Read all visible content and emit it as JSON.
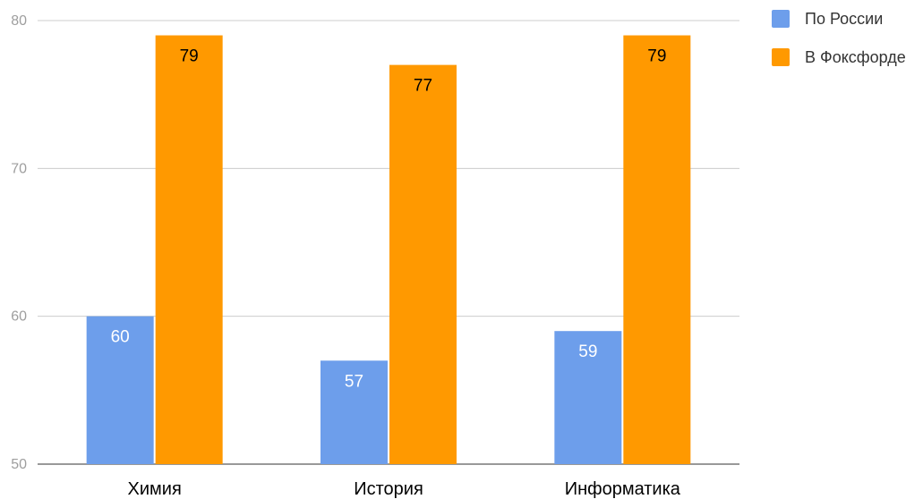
{
  "chart_data": {
    "type": "bar",
    "title": "",
    "xlabel": "",
    "ylabel": "",
    "categories": [
      "Химия",
      "История",
      "Информатика"
    ],
    "series": [
      {
        "name": "По России",
        "values": [
          60,
          57,
          59
        ],
        "color": "#6d9eeb"
      },
      {
        "name": "В Фоксфорде",
        "values": [
          79,
          77,
          79
        ],
        "color": "#ff9900"
      }
    ],
    "ylim": [
      50,
      80
    ],
    "yticks": [
      50,
      60,
      70,
      80
    ],
    "grid": true,
    "legend_position": "right",
    "data_labels": true
  }
}
